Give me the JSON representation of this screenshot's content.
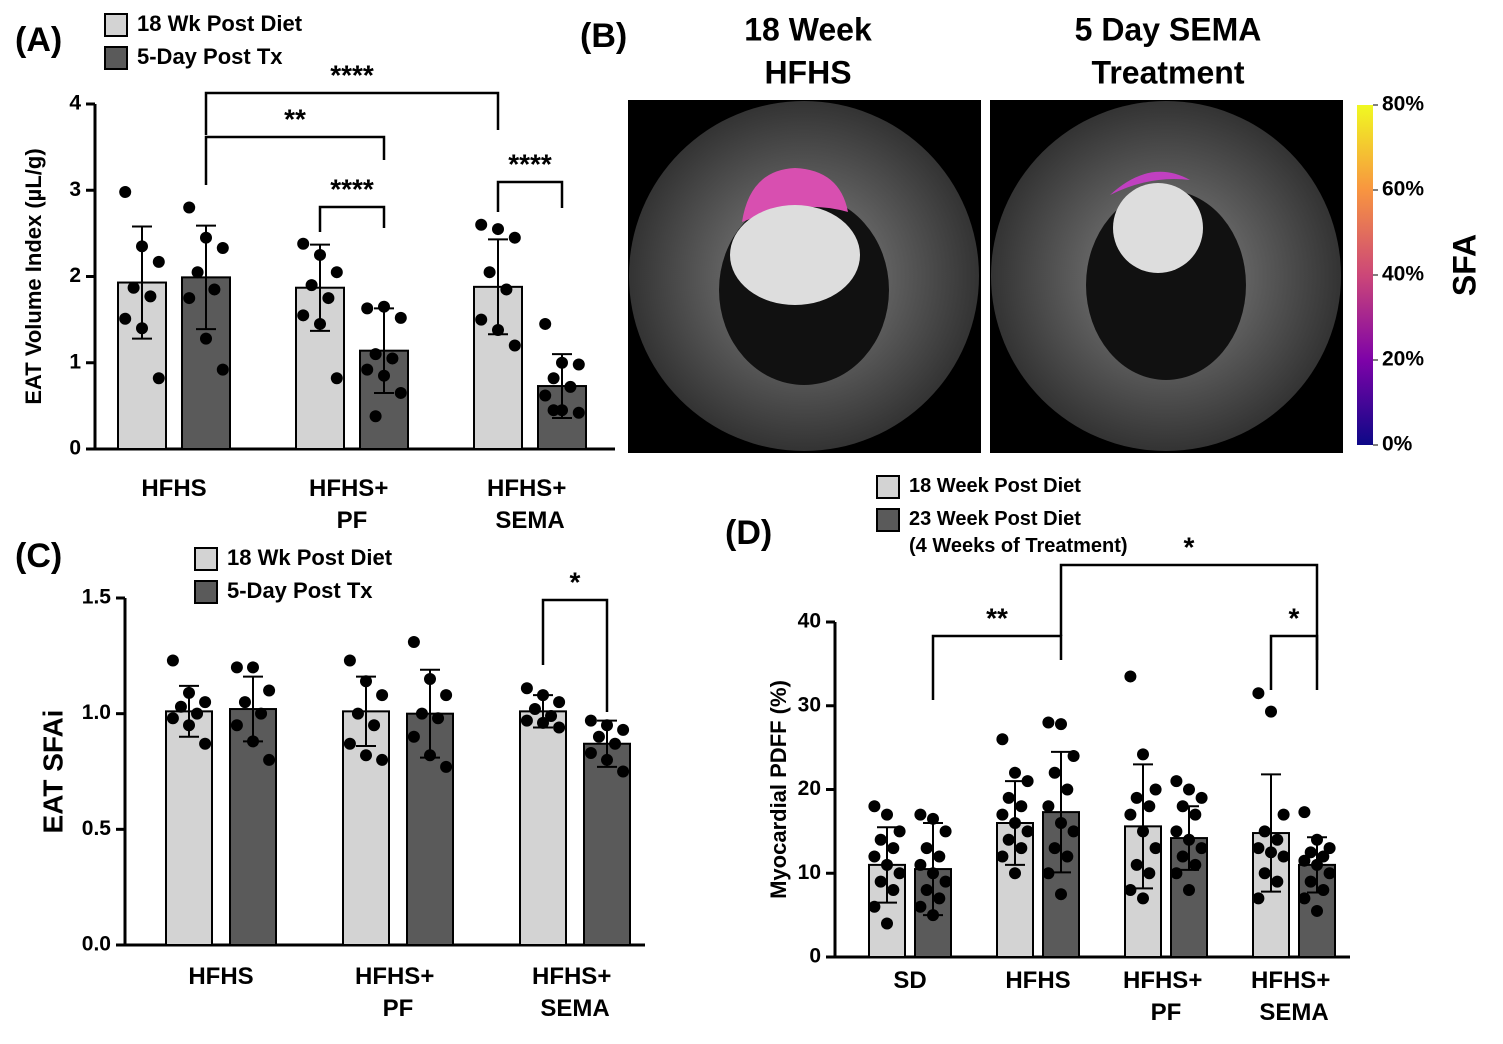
{
  "chart_data": [
    {
      "type": "bar",
      "panel": "(A)",
      "y_label": "EAT Volume Index (µL/g)",
      "categories": [
        "HFHS",
        "HFHS+ PF",
        "HFHS+ SEMA"
      ],
      "ylim": [
        0,
        4
      ],
      "yticks": [
        0,
        1,
        2,
        3,
        4
      ],
      "series": [
        {
          "name": "18 Wk Post Diet",
          "color": "#d3d3d3",
          "values": [
            1.93,
            1.87,
            1.88
          ],
          "errors": [
            0.65,
            0.5,
            0.55
          ],
          "points": [
            [
              2.98,
              2.35,
              2.17,
              1.87,
              1.77,
              1.51,
              1.4,
              0.82
            ],
            [
              2.38,
              2.25,
              2.05,
              1.9,
              1.75,
              1.55,
              1.45,
              0.82
            ],
            [
              2.6,
              2.55,
              2.45,
              2.05,
              1.85,
              1.5,
              1.38,
              1.2
            ]
          ]
        },
        {
          "name": "5-Day Post Tx",
          "color": "#5a5a5a",
          "values": [
            1.99,
            1.14,
            0.73
          ],
          "errors": [
            0.6,
            0.49,
            0.37
          ],
          "points": [
            [
              2.8,
              2.45,
              2.33,
              2.05,
              1.85,
              1.75,
              1.28,
              0.92
            ],
            [
              1.63,
              1.65,
              1.52,
              1.1,
              1.05,
              0.92,
              0.85,
              0.65,
              0.38
            ],
            [
              1.45,
              1.0,
              0.98,
              0.82,
              0.72,
              0.62,
              0.45,
              0.42,
              0.45
            ]
          ]
        }
      ],
      "annotations": [
        "****",
        "**",
        "****",
        "****"
      ]
    },
    {
      "type": "bar",
      "panel": "(C)",
      "y_label": "EAT SFAi",
      "categories": [
        "HFHS",
        "HFHS+ PF",
        "HFHS+ SEMA"
      ],
      "ylim": [
        0,
        1.5
      ],
      "yticks": [
        {
          "value": 0,
          "label": "0.0"
        },
        0.5,
        {
          "value": 1,
          "label": "1.0"
        },
        1.5
      ],
      "series": [
        {
          "name": "18 Wk Post Diet",
          "color": "#d3d3d3",
          "values": [
            1.01,
            1.01,
            1.01
          ],
          "errors": [
            0.11,
            0.15,
            0.07
          ],
          "points": [
            [
              1.23,
              1.09,
              1.05,
              1.03,
              1.0,
              0.98,
              0.95,
              0.87
            ],
            [
              1.23,
              1.14,
              1.08,
              1.0,
              0.95,
              0.87,
              0.82,
              0.8
            ],
            [
              1.11,
              1.08,
              1.05,
              1.02,
              0.99,
              0.97,
              0.96,
              0.94
            ]
          ]
        },
        {
          "name": "5-Day Post Tx",
          "color": "#5a5a5a",
          "values": [
            1.02,
            1.0,
            0.87
          ],
          "errors": [
            0.14,
            0.19,
            0.1
          ],
          "points": [
            [
              1.2,
              1.2,
              1.1,
              1.05,
              1.0,
              0.95,
              0.88,
              0.8
            ],
            [
              1.31,
              1.15,
              1.08,
              1.0,
              0.98,
              0.9,
              0.82,
              0.77
            ],
            [
              0.97,
              0.95,
              0.93,
              0.9,
              0.87,
              0.83,
              0.8,
              0.75
            ]
          ]
        }
      ],
      "annotations": [
        "*"
      ]
    },
    {
      "type": "bar",
      "panel": "(D)",
      "y_label": "Myocardial PDFF (%)",
      "categories": [
        "SD",
        "HFHS",
        "HFHS+ PF",
        "HFHS+ SEMA"
      ],
      "ylim": [
        0,
        40
      ],
      "yticks": [
        0,
        10,
        20,
        30,
        40
      ],
      "series": [
        {
          "name": "18 Week Post Diet",
          "color": "#d3d3d3",
          "values": [
            11,
            16,
            15.6,
            14.8
          ],
          "errors": [
            4.5,
            5,
            7.4,
            7
          ],
          "points": [
            [
              18,
              17,
              15,
              14,
              13,
              12,
              11,
              10,
              9,
              8,
              6,
              4
            ],
            [
              26,
              22,
              21,
              19,
              18,
              17,
              16,
              15,
              14,
              13,
              12,
              10
            ],
            [
              33.5,
              24.2,
              20,
              19,
              18,
              17,
              15,
              13,
              11,
              10,
              8,
              7
            ],
            [
              31.5,
              29.3,
              17,
              15,
              14,
              13,
              12.5,
              12,
              10,
              9,
              7
            ]
          ]
        },
        {
          "name": "23 Week Post Diet (4 Weeks of Treatment)",
          "color": "#5a5a5a",
          "values": [
            10.5,
            17.3,
            14.2,
            11
          ],
          "errors": [
            5.5,
            7.2,
            3.8,
            3.3
          ],
          "points": [
            [
              17,
              16.5,
              15,
              13,
              12,
              11,
              10,
              9,
              8,
              7,
              6,
              5
            ],
            [
              28,
              27.8,
              24,
              22,
              20,
              18,
              16,
              15,
              13,
              12,
              10,
              7.5
            ],
            [
              21,
              20,
              19,
              18,
              17,
              15,
              14,
              13,
              12,
              11,
              10,
              8
            ],
            [
              17.3,
              14,
              13,
              12.5,
              12,
              11.5,
              11,
              10,
              9,
              8,
              7,
              5.5
            ]
          ]
        }
      ],
      "annotations": [
        "**",
        "*",
        "*"
      ]
    }
  ],
  "panel_b": {
    "panel": "(B)",
    "titles": [
      [
        "18 Week",
        "HFHS"
      ],
      [
        "5 Day SEMA",
        "Treatment"
      ]
    ],
    "colorbar_label": "SFA",
    "colorbar_lim": [
      0,
      80
    ],
    "colorbar_ticks": [
      {
        "value": 0,
        "label": "0%"
      },
      {
        "value": 20,
        "label": "20%"
      },
      {
        "value": 40,
        "label": "40%"
      },
      {
        "value": 60,
        "label": "60%"
      },
      {
        "value": 80,
        "label": "80%"
      }
    ]
  }
}
